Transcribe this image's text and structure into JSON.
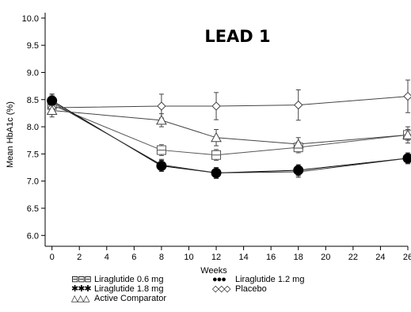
{
  "chart_data": {
    "type": "line",
    "title": "LEAD 1",
    "xlabel": "Weeks",
    "ylabel": "Mean HbA1c (%)",
    "xlim": [
      -0.5,
      26
    ],
    "ylim": [
      5.8,
      10.1
    ],
    "xticks": [
      0,
      2,
      4,
      6,
      8,
      10,
      12,
      14,
      16,
      18,
      20,
      22,
      24,
      26
    ],
    "xtick_labels": [
      "0",
      "2",
      "4",
      "6",
      "8",
      "10",
      "12",
      "14",
      "16",
      "18",
      "20",
      "22",
      "24",
      "26"
    ],
    "yticks": [
      6.0,
      6.5,
      7.0,
      7.5,
      8.0,
      8.5,
      9.0,
      9.5,
      10.0
    ],
    "ytick_labels": [
      "6.0",
      "6.5",
      "7.0",
      "7.5",
      "8.0",
      "8.5",
      "9.0",
      "9.5",
      "10.0"
    ],
    "grid": false,
    "legend_position": "bottom-left",
    "x": [
      0,
      8,
      12,
      18,
      26
    ],
    "series": [
      {
        "name": "Liraglutide 0.6 mg",
        "legend_marks": "⊟⊟⊟",
        "marker": "square-open",
        "color": "#555555",
        "values": [
          8.4,
          7.57,
          7.48,
          7.62,
          7.85
        ],
        "errors": [
          0.12,
          0.1,
          0.1,
          0.1,
          0.1
        ]
      },
      {
        "name": "Liraglutide 1.2 mg",
        "legend_marks": "●●●",
        "marker": "circle-filled",
        "color": "#000000",
        "values": [
          8.48,
          7.28,
          7.15,
          7.2,
          7.42
        ],
        "errors": [
          0.12,
          0.1,
          0.1,
          0.1,
          0.1
        ]
      },
      {
        "name": "Liraglutide 1.8 mg",
        "legend_marks": "✱✱✱",
        "marker": "star",
        "color": "#333333",
        "values": [
          8.45,
          7.3,
          7.15,
          7.17,
          7.42
        ],
        "errors": [
          0.12,
          0.1,
          0.1,
          0.1,
          0.1
        ]
      },
      {
        "name": "Placebo",
        "legend_marks": "◇◇◇",
        "marker": "diamond-open",
        "color": "#444444",
        "values": [
          8.35,
          8.38,
          8.38,
          8.4,
          8.56
        ],
        "errors": [
          0.12,
          0.22,
          0.25,
          0.28,
          0.3
        ]
      },
      {
        "name": "Active Comparator",
        "legend_marks": "△△△",
        "marker": "triangle-open",
        "color": "#444444",
        "values": [
          8.3,
          8.12,
          7.8,
          7.68,
          7.85
        ],
        "errors": [
          0.12,
          0.12,
          0.15,
          0.12,
          0.15
        ]
      }
    ]
  }
}
